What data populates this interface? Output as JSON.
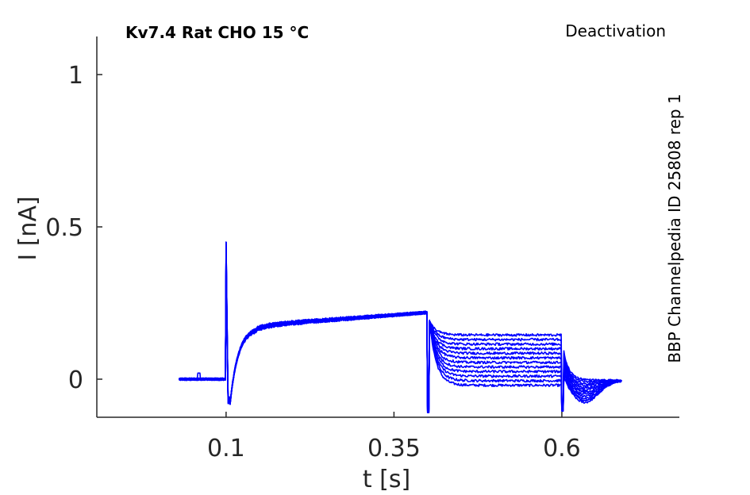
{
  "chart_data": {
    "type": "line",
    "title": "Kv7.4  Rat  CHO  15 °C",
    "subtitle": "Deactivation",
    "side_note": "BBP Channelpedia ID 25808 rep 1",
    "xlabel": "t [s]",
    "ylabel": "I [nA]",
    "xlim": [
      -0.0925,
      0.775
    ],
    "ylim": [
      -0.125,
      1.125
    ],
    "x_ticks": [
      0.1,
      0.35,
      0.6
    ],
    "x_tick_labels": [
      "0.1",
      "0.35",
      "0.6"
    ],
    "y_ticks": [
      0,
      0.5,
      1
    ],
    "y_tick_labels": [
      "0",
      "0.5",
      "1"
    ],
    "grid": false,
    "color": "#0000ff",
    "trace_count": 12,
    "protocol": {
      "baseline_start": 0.03,
      "step_on": 0.1,
      "step_off": 0.4,
      "tail_off": 0.6,
      "end": 0.69
    },
    "features": {
      "onset_spike_peak": 0.45,
      "onset_undershoot": -0.08,
      "activation_start": 0.165,
      "activation_end": 0.22,
      "step_off_dip": -0.11,
      "tail_levels_min": -0.02,
      "tail_levels_max": 0.145,
      "tail_off_dip": -0.105,
      "tail_off_bump": 0.09,
      "final_min": -0.075
    }
  }
}
